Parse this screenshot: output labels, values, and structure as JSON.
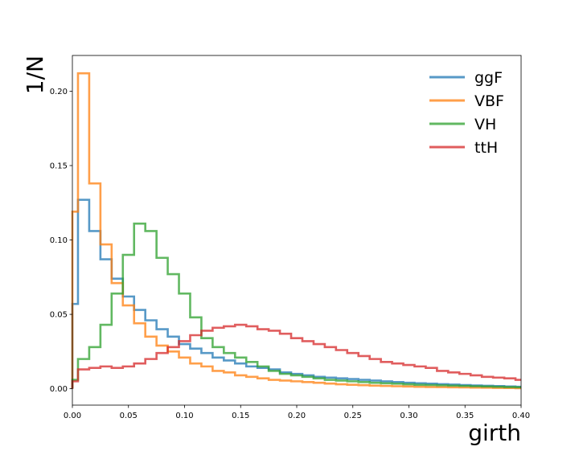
{
  "chart_data": {
    "type": "line",
    "title": "",
    "xlabel": "girth",
    "ylabel": "1/N",
    "xlim": [
      0.0,
      0.4
    ],
    "ylim": [
      -0.011,
      0.224
    ],
    "x_ticks": [
      0.0,
      0.05,
      0.1,
      0.15,
      0.2,
      0.25,
      0.3,
      0.35,
      0.4
    ],
    "x_tick_labels": [
      "0.00",
      "0.05",
      "0.10",
      "0.15",
      "0.20",
      "0.25",
      "0.30",
      "0.35",
      "0.40"
    ],
    "y_ticks": [
      0.0,
      0.05,
      0.1,
      0.15,
      0.2
    ],
    "y_tick_labels": [
      "0.00",
      "0.05",
      "0.10",
      "0.15",
      "0.20"
    ],
    "grid": false,
    "legend_position": "top-right",
    "bin_edges": [
      0.0,
      0.005,
      0.015,
      0.025,
      0.035,
      0.045,
      0.055,
      0.065,
      0.075,
      0.085,
      0.095,
      0.105,
      0.115,
      0.125,
      0.135,
      0.145,
      0.155,
      0.165,
      0.175,
      0.185,
      0.195,
      0.205,
      0.215,
      0.225,
      0.235,
      0.245,
      0.255,
      0.265,
      0.275,
      0.285,
      0.295,
      0.305,
      0.315,
      0.325,
      0.335,
      0.345,
      0.355,
      0.365,
      0.375,
      0.385,
      0.395,
      0.4
    ],
    "series": [
      {
        "name": "ggF",
        "color": "#1f77b4",
        "values": [
          0.057,
          0.127,
          0.106,
          0.087,
          0.074,
          0.062,
          0.053,
          0.046,
          0.04,
          0.035,
          0.03,
          0.027,
          0.024,
          0.021,
          0.019,
          0.017,
          0.015,
          0.014,
          0.013,
          0.011,
          0.01,
          0.009,
          0.008,
          0.0075,
          0.007,
          0.0065,
          0.006,
          0.0055,
          0.005,
          0.0045,
          0.004,
          0.0037,
          0.0034,
          0.0031,
          0.0028,
          0.0025,
          0.0022,
          0.002,
          0.0018,
          0.0015,
          0.0013
        ]
      },
      {
        "name": "VBF",
        "color": "#ff7f0e",
        "values": [
          0.119,
          0.212,
          0.138,
          0.097,
          0.071,
          0.056,
          0.044,
          0.035,
          0.029,
          0.025,
          0.021,
          0.017,
          0.015,
          0.012,
          0.011,
          0.009,
          0.008,
          0.007,
          0.006,
          0.0055,
          0.005,
          0.0045,
          0.004,
          0.0035,
          0.003,
          0.0027,
          0.0024,
          0.0021,
          0.0019,
          0.0017,
          0.0015,
          0.0013,
          0.0012,
          0.0011,
          0.001,
          0.0009,
          0.0008,
          0.0007,
          0.0006,
          0.0005,
          0.0004
        ]
      },
      {
        "name": "VH",
        "color": "#2ca02c",
        "values": [
          0.006,
          0.02,
          0.028,
          0.043,
          0.064,
          0.09,
          0.111,
          0.106,
          0.088,
          0.077,
          0.064,
          0.048,
          0.034,
          0.028,
          0.024,
          0.021,
          0.018,
          0.015,
          0.012,
          0.01,
          0.009,
          0.008,
          0.007,
          0.006,
          0.0055,
          0.005,
          0.0045,
          0.004,
          0.0037,
          0.0034,
          0.003,
          0.0027,
          0.0025,
          0.0023,
          0.0021,
          0.0019,
          0.0017,
          0.0015,
          0.0013,
          0.0011,
          0.001
        ]
      },
      {
        "name": "ttH",
        "color": "#d62728",
        "values": [
          0.005,
          0.013,
          0.014,
          0.015,
          0.014,
          0.015,
          0.017,
          0.02,
          0.024,
          0.028,
          0.032,
          0.036,
          0.039,
          0.041,
          0.042,
          0.043,
          0.042,
          0.04,
          0.039,
          0.037,
          0.034,
          0.032,
          0.03,
          0.028,
          0.026,
          0.024,
          0.022,
          0.02,
          0.018,
          0.017,
          0.016,
          0.015,
          0.014,
          0.012,
          0.011,
          0.01,
          0.009,
          0.008,
          0.0075,
          0.007,
          0.006
        ]
      }
    ]
  }
}
